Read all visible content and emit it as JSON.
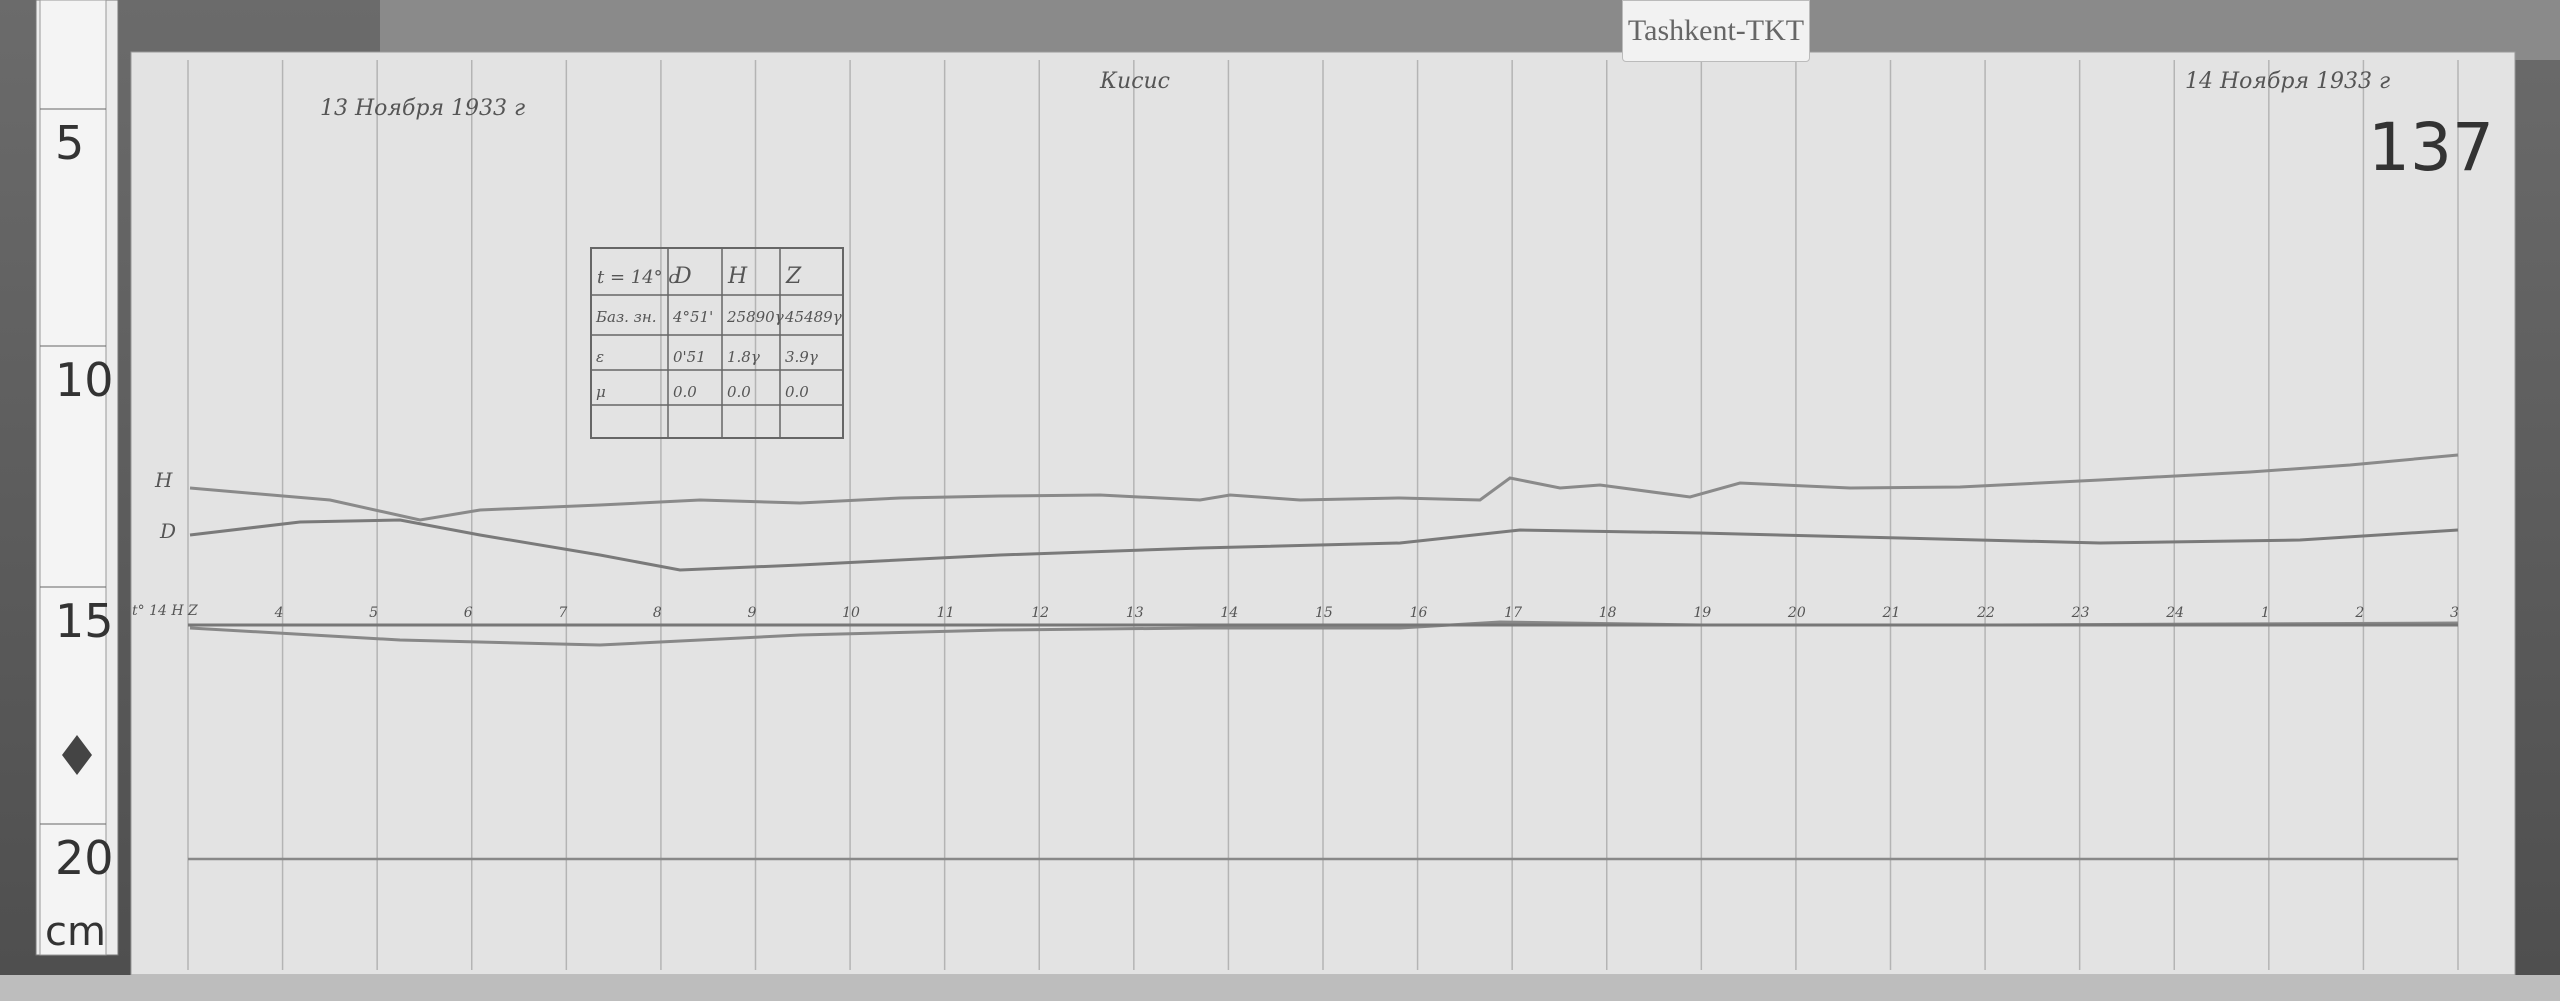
{
  "station_label": "Tashkent-TKT",
  "sheet_number": "137",
  "header": {
    "start_date": "13 Ноября 1933 г",
    "center_note": "Кисис",
    "end_date": "14 Ноября 1933 г"
  },
  "table": {
    "headers": [
      "t = 14° c",
      "D",
      "H",
      "Z"
    ],
    "rows": [
      [
        "Баз. зн.",
        "4°51'",
        "25890γ",
        "45489γ"
      ],
      [
        "ε",
        "0'51",
        "1.8γ",
        "3.9γ"
      ],
      [
        "μ",
        "0.0",
        "0.0",
        "0.0"
      ],
      [
        "",
        "",
        "",
        ""
      ]
    ]
  },
  "trace_labels": {
    "h": "H",
    "d": "D",
    "baseline": "t° 14 H Z"
  },
  "hour_ticks": [
    "4",
    "5",
    "6",
    "7",
    "8",
    "9",
    "10",
    "11",
    "12",
    "13",
    "14",
    "15",
    "16",
    "17",
    "18",
    "19",
    "20",
    "21",
    "22",
    "23",
    "24",
    "1",
    "2",
    "3"
  ],
  "ruler": {
    "marks": [
      "5",
      "10",
      "15",
      "20"
    ],
    "unit": "cm"
  },
  "colors": {
    "paper": "#e4e4e4",
    "trace": "#7a7a7a",
    "ink": "#555555"
  }
}
